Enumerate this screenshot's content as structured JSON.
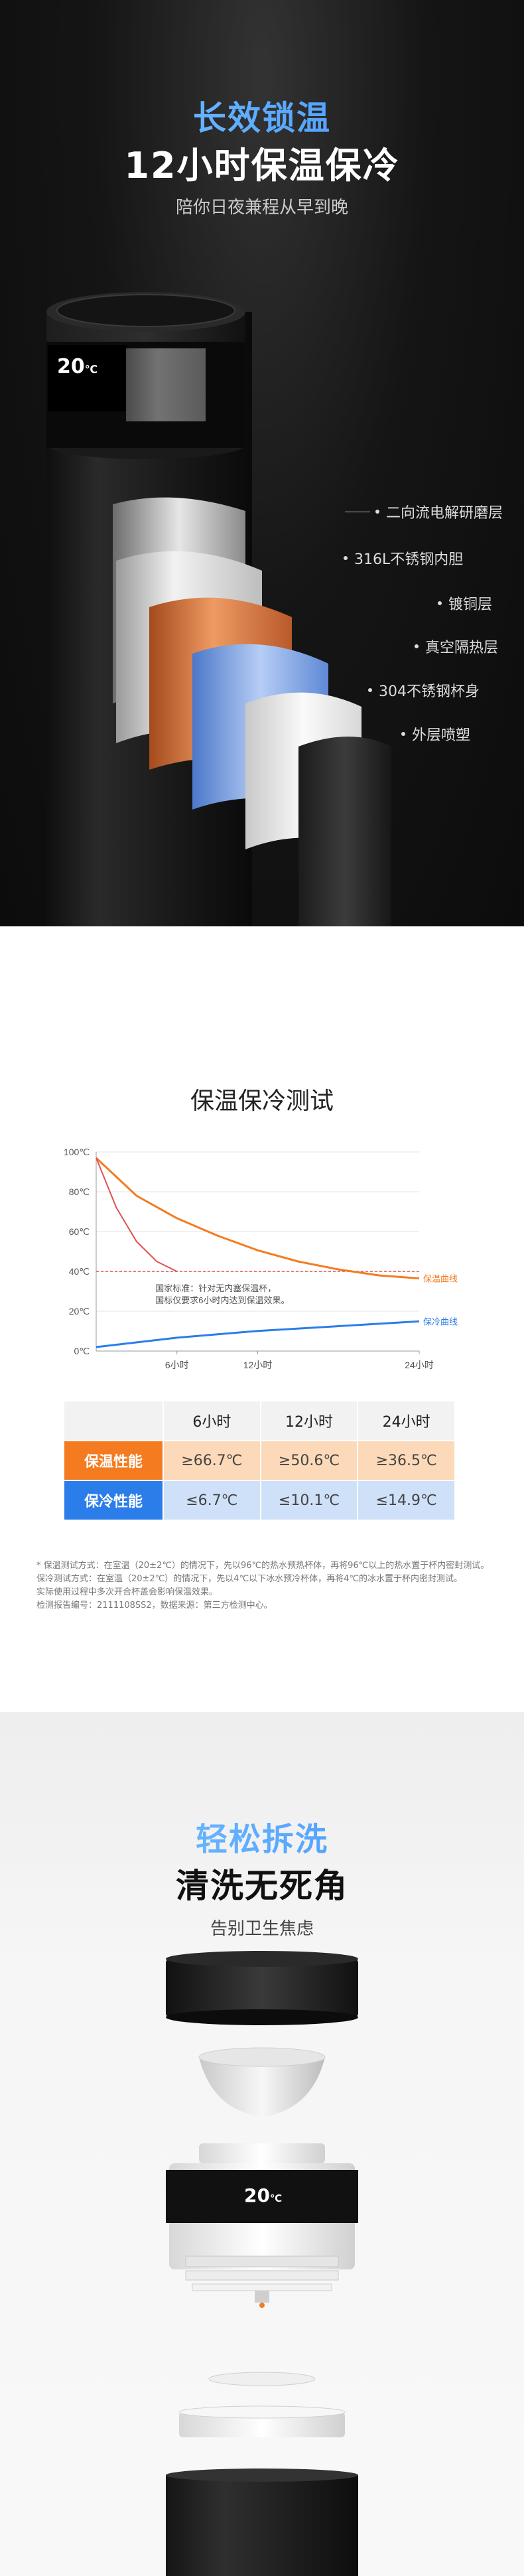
{
  "hero": {
    "accent_title": "长效锁温",
    "main_title": "12小时保温保冷",
    "subtitle": "陪你日夜兼程从早到晚",
    "display_temp": "20",
    "display_unit": "℃",
    "layers": [
      "二向流电解研磨层",
      "316L不锈钢内胆",
      "镀铜层",
      "真空隔热层",
      "304不锈钢杯身",
      "外层喷塑"
    ]
  },
  "test": {
    "title": "保温保冷测试",
    "chart_data": {
      "type": "line",
      "y_ticks": [
        "100℃",
        "80℃",
        "60℃",
        "40℃",
        "20℃",
        "0℃"
      ],
      "x_ticks": [
        "6小时",
        "12小时",
        "24小时"
      ],
      "ylim": [
        0,
        100
      ],
      "threshold": 40,
      "annotation": [
        "国家标准：针对无内塞保温杯，",
        "国标仅要求6小时内达到保温效果。"
      ],
      "series": [
        {
          "name": "保温曲线",
          "color": "#f47b20",
          "x": [
            0,
            3,
            6,
            9,
            12,
            15,
            18,
            21,
            24
          ],
          "y": [
            97,
            78,
            66.7,
            58,
            50.6,
            45,
            41,
            38,
            36.5
          ]
        },
        {
          "name": "保冷曲线",
          "color": "#2b7de9",
          "x": [
            0,
            6,
            12,
            18,
            24
          ],
          "y": [
            2,
            6.7,
            10.1,
            12.5,
            14.9
          ]
        },
        {
          "name": "",
          "color": "#e05050",
          "x": [
            0,
            1.5,
            3,
            4.5,
            6
          ],
          "y": [
            97,
            72,
            55,
            45,
            40
          ]
        }
      ]
    },
    "table": {
      "headers": [
        "6小时",
        "12小时",
        "24小时"
      ],
      "rows": [
        {
          "label": "保温性能",
          "values": [
            "≥66.7℃",
            "≥50.6℃",
            "≥36.5℃"
          ]
        },
        {
          "label": "保冷性能",
          "values": [
            "≤6.7℃",
            "≤10.1℃",
            "≤14.9℃"
          ]
        }
      ]
    },
    "notes": [
      "* 保温测试方式：在室温（20±2℃）的情况下，先以96℃的热水预热杯体，再将96℃以上的热水置于杯内密封测试。",
      "  保冷测试方式：在室温（20±2℃）的情况下，先以4℃以下冰水预冷杯体，再将4℃的冰水置于杯内密封测试。",
      "  实际使用过程中多次开合杯盖会影响保温效果。",
      "  检测报告编号：2111108SS2，数据来源：第三方检测中心。"
    ]
  },
  "wash": {
    "accent_title": "轻松拆洗",
    "main_title": "清洗无死角",
    "subtitle": "告别卫生焦虑",
    "display_temp": "20",
    "display_unit": "℃"
  },
  "colors": {
    "orange": "#f47b20",
    "blue": "#2b7de9",
    "accent": "#55aaff"
  }
}
